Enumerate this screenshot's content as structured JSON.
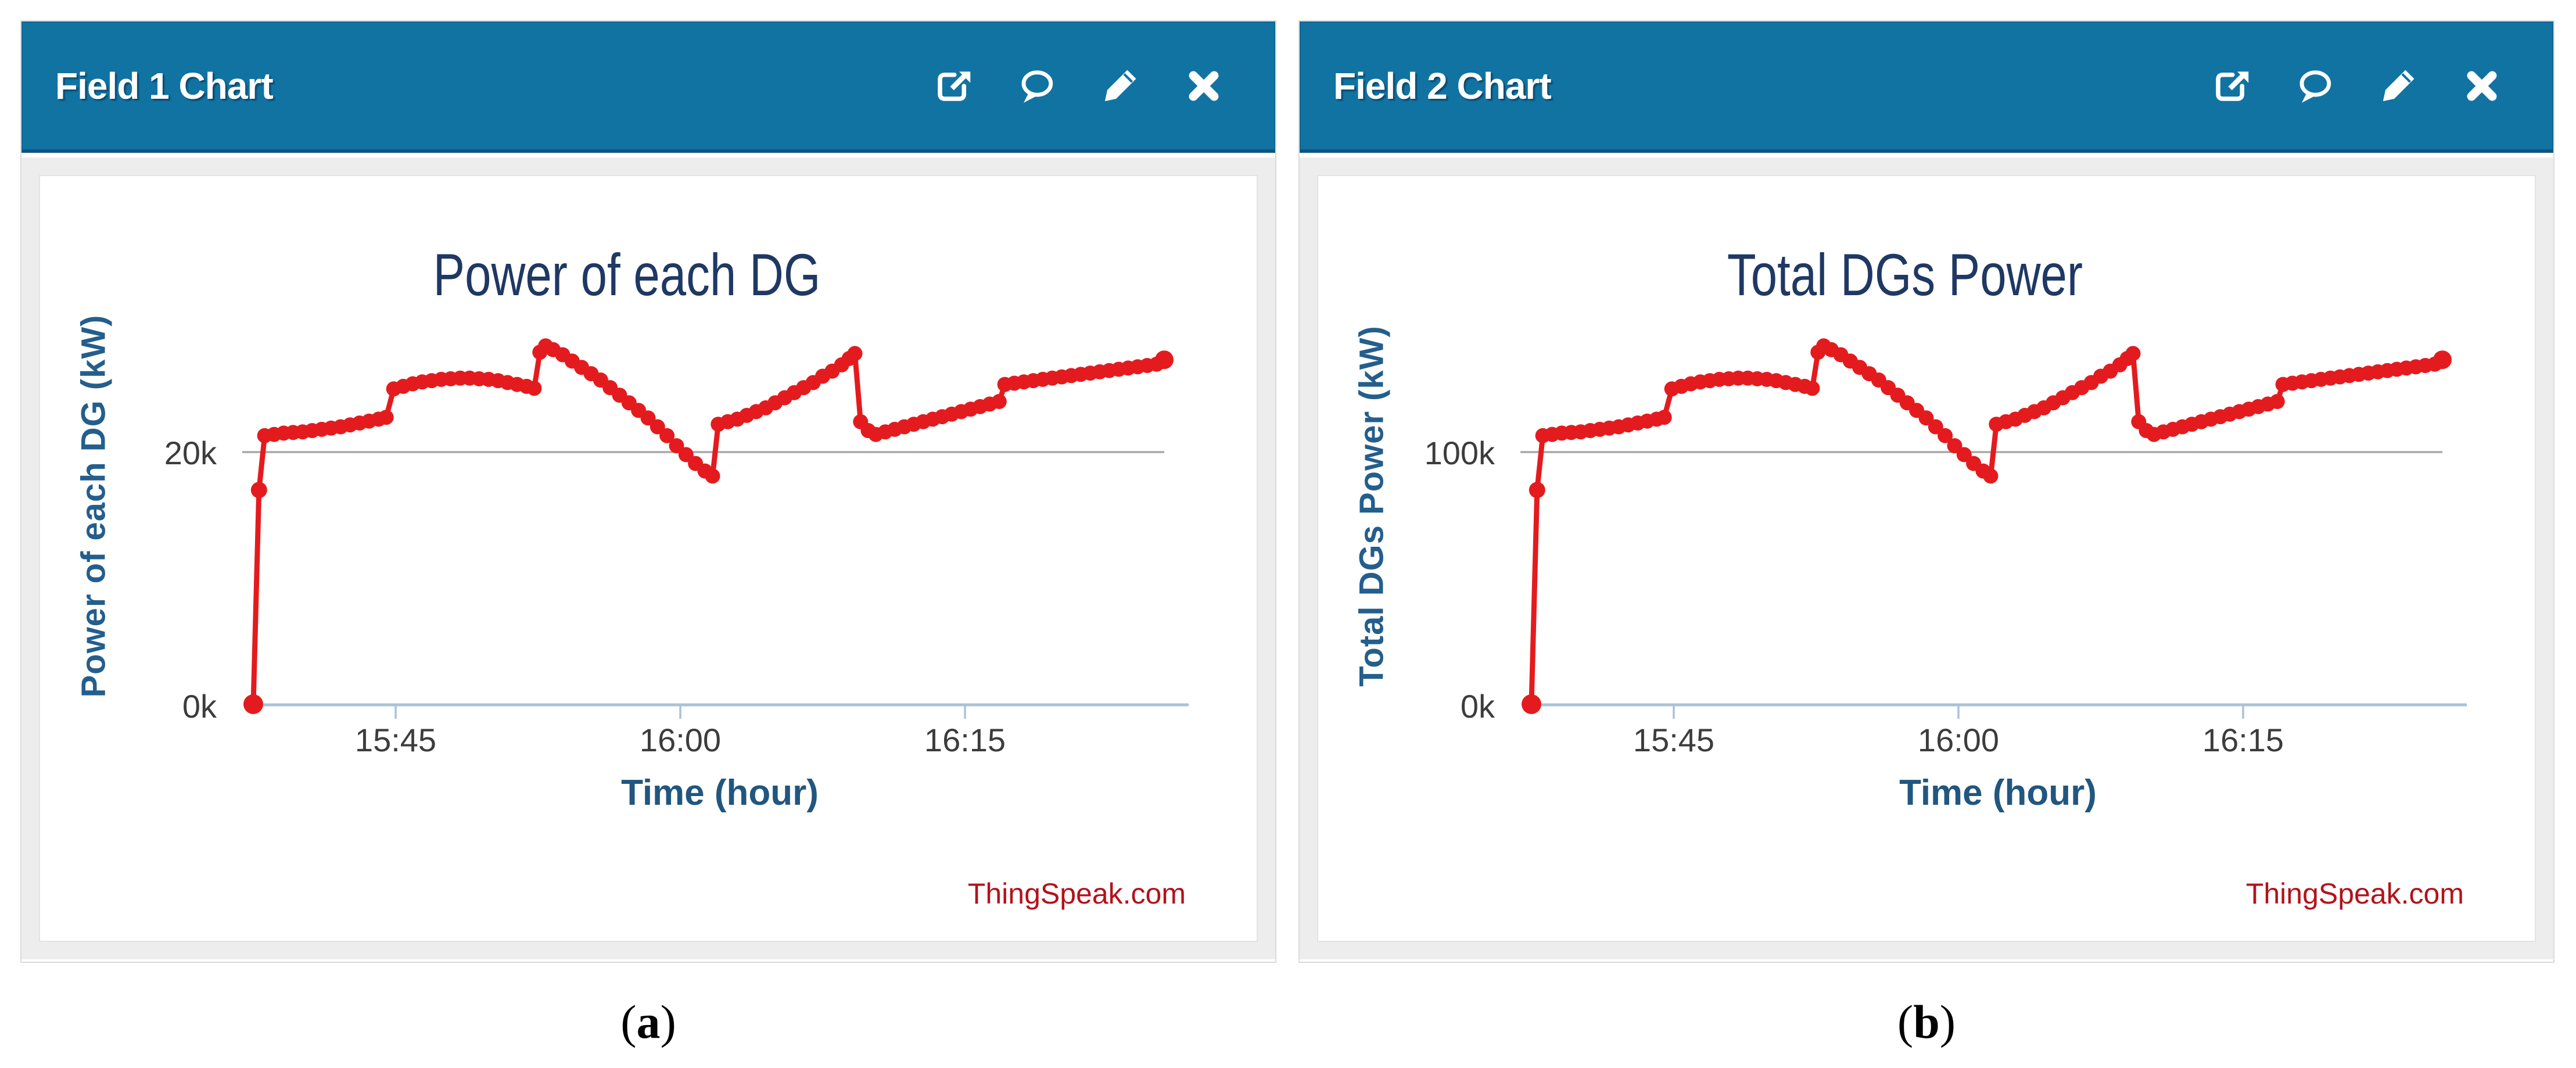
{
  "page": {
    "background": "#ffffff"
  },
  "panels": [
    {
      "header": {
        "title": "Field 1 Chart",
        "icons": [
          "external-link-icon",
          "comment-icon",
          "edit-icon",
          "close-icon"
        ]
      },
      "caption": {
        "open": "(",
        "letter": "a",
        "close": ")"
      }
    },
    {
      "header": {
        "title": "Field 2 Chart",
        "icons": [
          "external-link-icon",
          "comment-icon",
          "edit-icon",
          "close-icon"
        ]
      },
      "caption": {
        "open": "(",
        "letter": "b",
        "close": ")"
      }
    }
  ],
  "colors": {
    "header_blue": "#1173a2",
    "header_border": "#0a5580",
    "curve_red": "#e41b1e",
    "title_navy": "#1f3864",
    "axis_label_blue": "#235e8d",
    "tick_text": "#3c3c3c",
    "watermark_red": "#b3121b",
    "gridline_gray": "#a8a8a8",
    "baseline_blue": "#a9c2d6",
    "panel_body_gray": "#ededed"
  },
  "chart_data": [
    {
      "type": "line",
      "title": "Power of each DG",
      "xlabel": "Time (hour)",
      "ylabel": "Power of each DG (kW)",
      "watermark": "ThingSpeak.com",
      "x_tick_labels": [
        "15:45",
        "16:00",
        "16:15"
      ],
      "x_tick_minutes": [
        45,
        60,
        75
      ],
      "y_ticks": [
        {
          "label": "0k",
          "value": 0
        },
        {
          "label": "20k",
          "value": 20000
        }
      ],
      "ylim": [
        0,
        30000
      ],
      "xlim_minutes_after_1500": [
        37.4,
        86.7
      ],
      "grid": "single horizontal gridline at 20k",
      "legend": "none",
      "axis_color": "#a9c2d6",
      "grid_color": "#a8a8a8",
      "series": [
        {
          "name": "Power of each DG (kW)",
          "color": "#e41b1e",
          "x_minutes_after_1500": [
            37.5,
            37.8,
            38.1,
            38.6,
            39.1,
            39.6,
            40.1,
            40.6,
            41.1,
            41.6,
            42.1,
            42.6,
            43.1,
            43.6,
            44.1,
            44.5,
            44.9,
            45.4,
            45.9,
            46.4,
            46.9,
            47.4,
            47.9,
            48.4,
            48.9,
            49.4,
            49.9,
            50.4,
            50.9,
            51.4,
            51.9,
            52.3,
            52.6,
            52.9,
            53.3,
            53.8,
            54.3,
            54.8,
            55.3,
            55.8,
            56.3,
            56.8,
            57.3,
            57.8,
            58.3,
            58.8,
            59.3,
            59.8,
            60.3,
            60.8,
            61.3,
            61.7,
            62.0,
            62.5,
            63.0,
            63.5,
            64.0,
            64.5,
            65.0,
            65.5,
            66.0,
            66.5,
            67.0,
            67.5,
            68.0,
            68.5,
            68.9,
            69.2,
            69.5,
            69.9,
            70.3,
            70.8,
            71.3,
            71.8,
            72.3,
            72.8,
            73.3,
            73.8,
            74.3,
            74.8,
            75.3,
            75.8,
            76.3,
            76.8,
            77.1,
            77.6,
            78.1,
            78.6,
            79.1,
            79.6,
            80.1,
            80.6,
            81.1,
            81.6,
            82.1,
            82.6,
            83.1,
            83.6,
            84.1,
            84.6,
            85.1,
            85.5
          ],
          "values_kw": [
            50,
            17000,
            21300,
            21400,
            21500,
            21550,
            21600,
            21700,
            21800,
            21900,
            22000,
            22150,
            22300,
            22450,
            22600,
            22750,
            25000,
            25200,
            25400,
            25550,
            25650,
            25750,
            25800,
            25850,
            25850,
            25800,
            25750,
            25650,
            25500,
            25350,
            25200,
            25050,
            27900,
            28400,
            28100,
            27700,
            27200,
            26700,
            26200,
            25700,
            25100,
            24500,
            23900,
            23300,
            22700,
            22000,
            21300,
            20500,
            19800,
            19100,
            18500,
            18100,
            22200,
            22400,
            22600,
            22900,
            23200,
            23500,
            23900,
            24300,
            24700,
            25100,
            25500,
            26000,
            26400,
            26900,
            27400,
            27800,
            22400,
            21700,
            21400,
            21600,
            21800,
            22000,
            22200,
            22400,
            22600,
            22800,
            23000,
            23200,
            23400,
            23600,
            23800,
            24000,
            25350,
            25450,
            25550,
            25650,
            25750,
            25850,
            25950,
            26050,
            26150,
            26250,
            26350,
            26450,
            26550,
            26650,
            26750,
            26850,
            26950,
            27300
          ]
        }
      ]
    },
    {
      "type": "line",
      "title": "Total DGs Power",
      "xlabel": "Time (hour)",
      "ylabel": "Total DGs Power (kW)",
      "watermark": "ThingSpeak.com",
      "x_tick_labels": [
        "15:45",
        "16:00",
        "16:15"
      ],
      "x_tick_minutes": [
        45,
        60,
        75
      ],
      "y_ticks": [
        {
          "label": "0k",
          "value": 0
        },
        {
          "label": "100k",
          "value": 100000
        }
      ],
      "ylim": [
        0,
        150000
      ],
      "xlim_minutes_after_1500": [
        37.4,
        86.7
      ],
      "grid": "single horizontal gridline at 100k",
      "legend": "none",
      "axis_color": "#a9c2d6",
      "grid_color": "#a8a8a8",
      "series": [
        {
          "name": "Total DGs Power (kW)",
          "color": "#e41b1e",
          "x_minutes_after_1500": [
            37.5,
            37.8,
            38.1,
            38.6,
            39.1,
            39.6,
            40.1,
            40.6,
            41.1,
            41.6,
            42.1,
            42.6,
            43.1,
            43.6,
            44.1,
            44.5,
            44.9,
            45.4,
            45.9,
            46.4,
            46.9,
            47.4,
            47.9,
            48.4,
            48.9,
            49.4,
            49.9,
            50.4,
            50.9,
            51.4,
            51.9,
            52.3,
            52.6,
            52.9,
            53.3,
            53.8,
            54.3,
            54.8,
            55.3,
            55.8,
            56.3,
            56.8,
            57.3,
            57.8,
            58.3,
            58.8,
            59.3,
            59.8,
            60.3,
            60.8,
            61.3,
            61.7,
            62.0,
            62.5,
            63.0,
            63.5,
            64.0,
            64.5,
            65.0,
            65.5,
            66.0,
            66.5,
            67.0,
            67.5,
            68.0,
            68.5,
            68.9,
            69.2,
            69.5,
            69.9,
            70.3,
            70.8,
            71.3,
            71.8,
            72.3,
            72.8,
            73.3,
            73.8,
            74.3,
            74.8,
            75.3,
            75.8,
            76.3,
            76.8,
            77.1,
            77.6,
            78.1,
            78.6,
            79.1,
            79.6,
            80.1,
            80.6,
            81.1,
            81.6,
            82.1,
            82.6,
            83.1,
            83.6,
            84.1,
            84.6,
            85.1,
            85.5
          ],
          "values_kw": [
            250,
            85000,
            106500,
            107000,
            107500,
            107750,
            108000,
            108500,
            109000,
            109500,
            110000,
            110750,
            111500,
            112250,
            113000,
            113750,
            125000,
            126000,
            127000,
            127750,
            128250,
            128750,
            129000,
            129250,
            129250,
            129000,
            128750,
            128250,
            127500,
            126750,
            126000,
            125250,
            139500,
            142000,
            140500,
            138500,
            136000,
            133500,
            131000,
            128500,
            125500,
            122500,
            119500,
            116500,
            113500,
            110000,
            106500,
            102500,
            99000,
            95500,
            92500,
            90500,
            111000,
            112000,
            113000,
            114500,
            116000,
            117500,
            119500,
            121500,
            123500,
            125500,
            127500,
            130000,
            132000,
            134500,
            137000,
            139000,
            112000,
            108500,
            107000,
            108000,
            109000,
            110000,
            111000,
            112000,
            113000,
            114000,
            115000,
            116000,
            117000,
            118000,
            119000,
            120000,
            126750,
            127250,
            127750,
            128250,
            128750,
            129250,
            129750,
            130250,
            130750,
            131250,
            131750,
            132250,
            132750,
            133250,
            133750,
            134250,
            134750,
            136500
          ]
        }
      ]
    }
  ]
}
